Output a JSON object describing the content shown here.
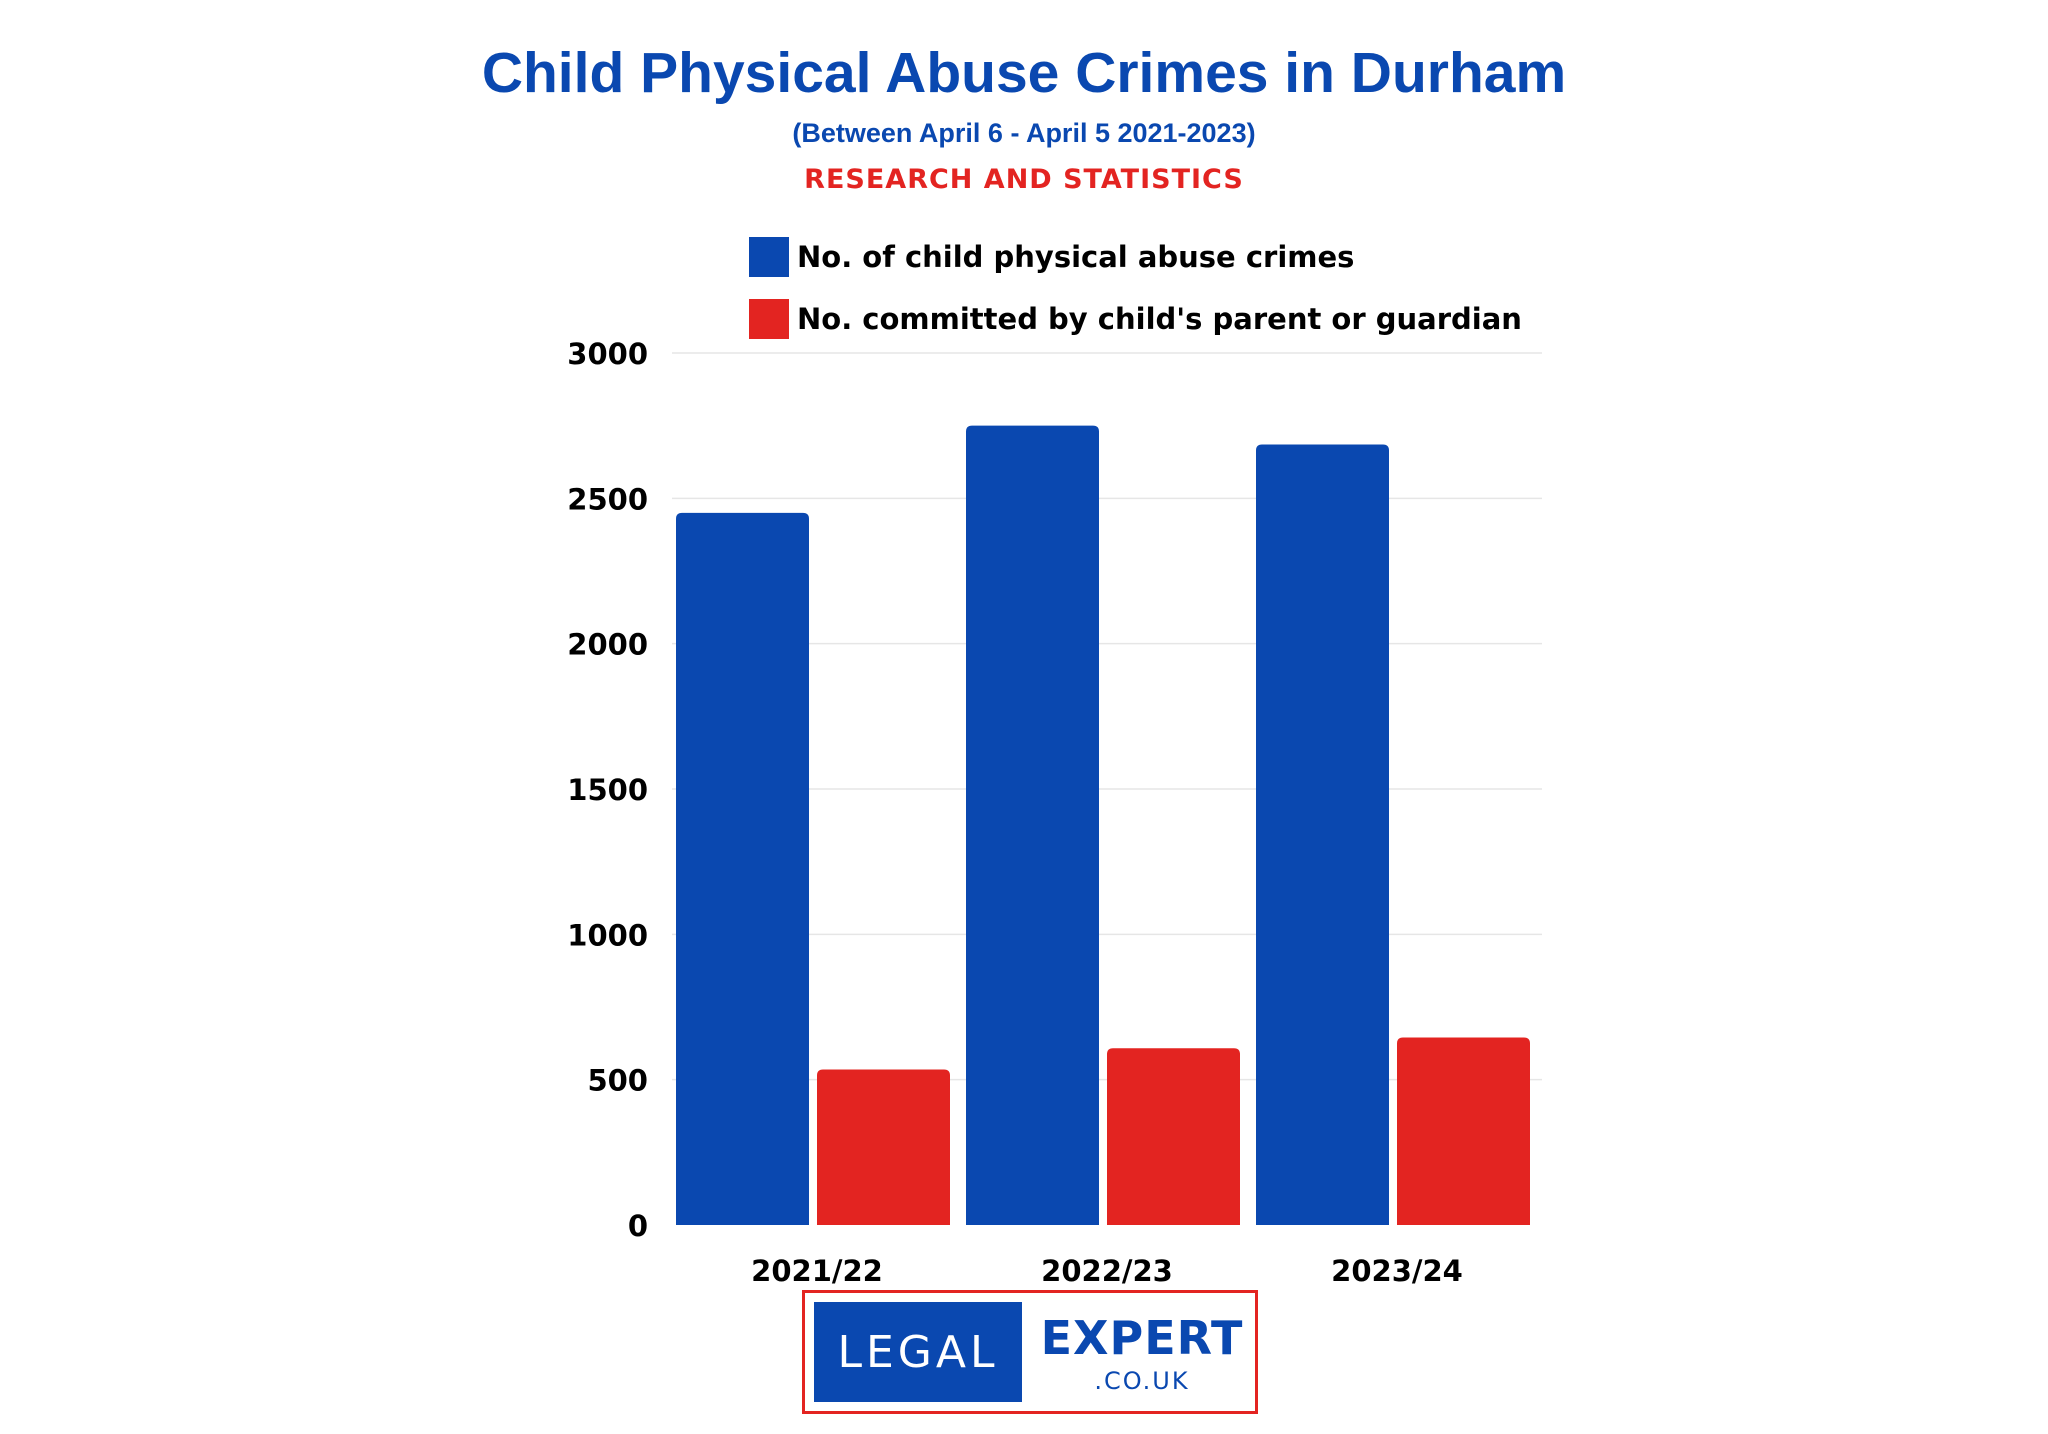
{
  "header": {
    "title": "Child Physical Abuse Crimes in Durham",
    "subtitle": "(Between April 6 - April 5 2021-2023)",
    "tagline": "RESEARCH AND STATISTICS"
  },
  "colors": {
    "title": "#0a48b0",
    "tagline": "#e32421",
    "series_1": "#0a48b0",
    "series_2": "#e32421",
    "gridline": "#e6e6e6"
  },
  "chart_data": {
    "type": "bar",
    "categories": [
      "2021/22",
      "2022/23",
      "2023/24"
    ],
    "series": [
      {
        "name": "No. of child physical abuse crimes",
        "values": [
          2450,
          2750,
          2685
        ],
        "color": "#0a48b0"
      },
      {
        "name": "No. committed by child's parent or guardian",
        "values": [
          535,
          608,
          645
        ],
        "color": "#e32421"
      }
    ],
    "y_ticks": [
      "0",
      "500",
      "1000",
      "1500",
      "2000",
      "2500",
      "3000"
    ],
    "ylim": [
      0,
      3000
    ],
    "grid": true,
    "legend_position": "top"
  },
  "logo": {
    "left_text": "LEGAL",
    "right_text": "EXPERT",
    "domain_text": ".CO.UK"
  }
}
